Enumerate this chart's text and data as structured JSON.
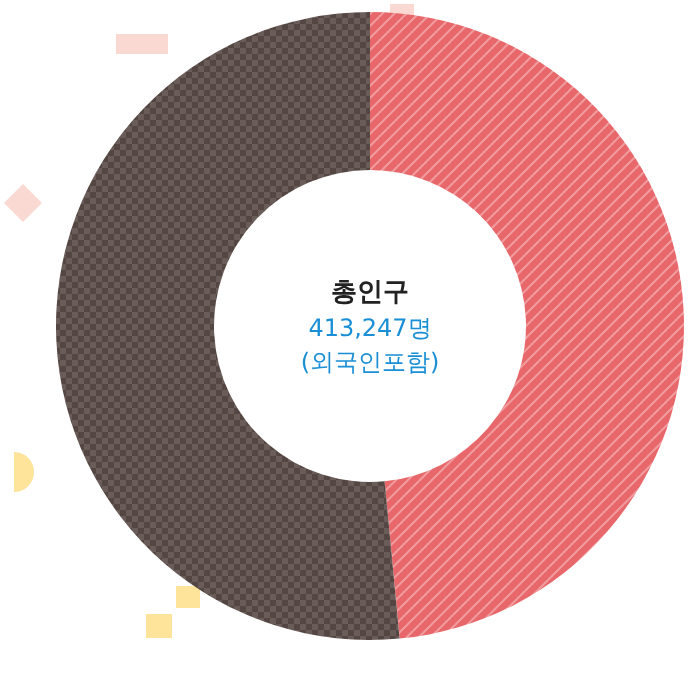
{
  "chart_data": {
    "type": "donut",
    "title": "총인구",
    "annotations": [
      "413,247명",
      "(외국인포함)"
    ],
    "categories": [
      null,
      null
    ],
    "values": [
      48.5,
      51.5
    ],
    "colors": [
      "#e8676a",
      "#544642"
    ]
  }
}
